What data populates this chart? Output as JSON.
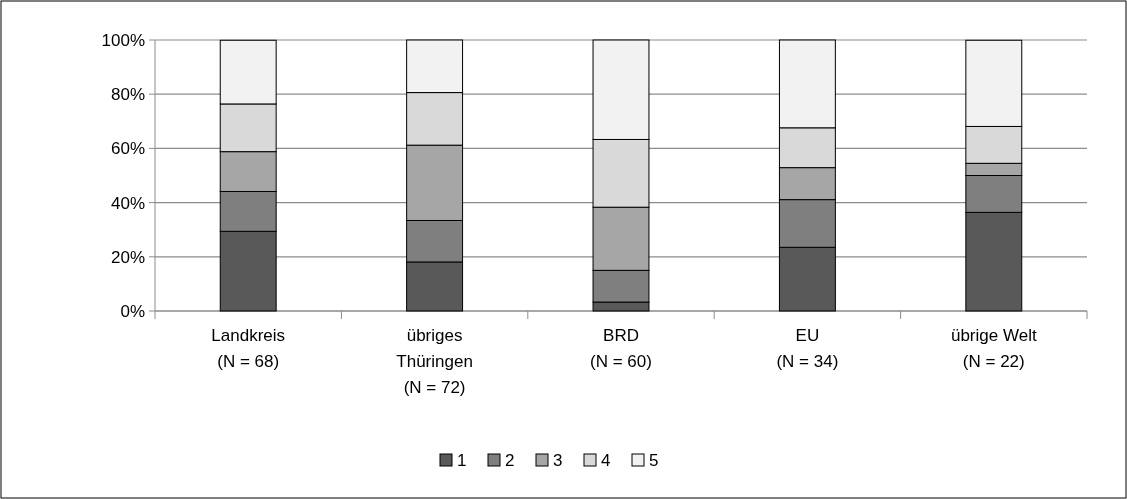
{
  "chart_data": {
    "type": "bar",
    "stacked": true,
    "categories": [
      "Landkreis\n(N = 68)",
      "übriges\nThüringen\n(N = 72)",
      "BRD\n(N = 60)",
      "EU\n(N = 34)",
      "übrige Welt\n(N = 22)"
    ],
    "series": [
      {
        "name": "1",
        "color": "#595959",
        "values": [
          29.4,
          18.1,
          3.3,
          23.5,
          36.4
        ]
      },
      {
        "name": "2",
        "color": "#7f7f7f",
        "values": [
          14.7,
          15.3,
          11.7,
          17.6,
          13.6
        ]
      },
      {
        "name": "3",
        "color": "#a6a6a6",
        "values": [
          14.7,
          27.8,
          23.3,
          11.8,
          4.5
        ]
      },
      {
        "name": "4",
        "color": "#d9d9d9",
        "values": [
          17.6,
          19.4,
          25.0,
          14.7,
          13.6
        ]
      },
      {
        "name": "5",
        "color": "#f2f2f2",
        "values": [
          23.5,
          19.4,
          36.7,
          32.4,
          31.8
        ]
      }
    ],
    "ylim": [
      0,
      100
    ],
    "yticks": [
      {
        "value": 0,
        "label": "0%"
      },
      {
        "value": 20,
        "label": "20%"
      },
      {
        "value": 40,
        "label": "40%"
      },
      {
        "value": 60,
        "label": "60%"
      },
      {
        "value": 80,
        "label": "80%"
      },
      {
        "value": 100,
        "label": "100%"
      }
    ],
    "grid": "y",
    "legend": "bottom"
  }
}
